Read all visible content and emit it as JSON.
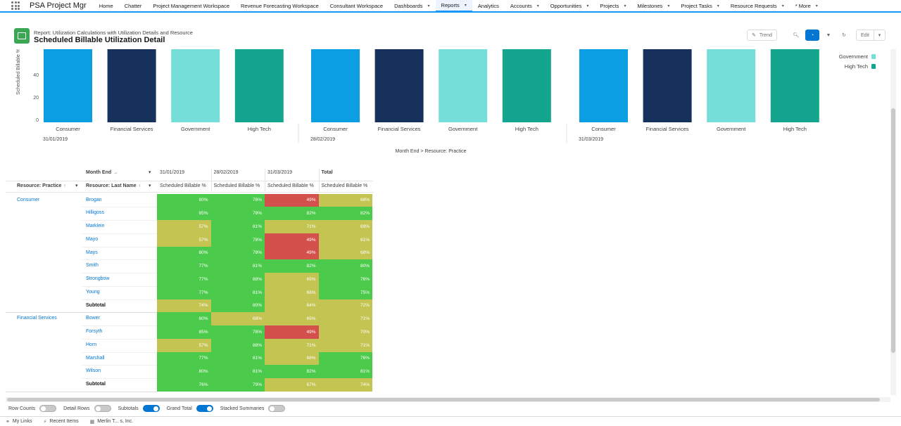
{
  "app": {
    "name": "PSA Project Mgr"
  },
  "nav": [
    {
      "label": "Home",
      "dropdown": false
    },
    {
      "label": "Chatter",
      "dropdown": false
    },
    {
      "label": "Project Management Workspace",
      "dropdown": false
    },
    {
      "label": "Revenue Forecasting Workspace",
      "dropdown": false
    },
    {
      "label": "Consultant Workspace",
      "dropdown": false
    },
    {
      "label": "Dashboards",
      "dropdown": true
    },
    {
      "label": "Reports",
      "dropdown": true,
      "active": true
    },
    {
      "label": "Analytics",
      "dropdown": false
    },
    {
      "label": "Accounts",
      "dropdown": true
    },
    {
      "label": "Opportunities",
      "dropdown": true
    },
    {
      "label": "Projects",
      "dropdown": true
    },
    {
      "label": "Milestones",
      "dropdown": true
    },
    {
      "label": "Project Tasks",
      "dropdown": true
    },
    {
      "label": "Resource Requests",
      "dropdown": true
    },
    {
      "label": "* More",
      "dropdown": true
    }
  ],
  "report": {
    "breadcrumb": "Report: Utilization Calculations with Utilization Details and Resource",
    "title": "Scheduled Billable Utilization Detail",
    "buttons": {
      "trend": "Trend",
      "edit": "Edit"
    }
  },
  "chart_data": {
    "type": "bar",
    "ylabel": "Scheduled Billable %",
    "xlabel": "Month End > Resource: Practice",
    "yticks": [
      0,
      20,
      40
    ],
    "groups": [
      "31/01/2019",
      "28/02/2019",
      "31/03/2019"
    ],
    "categories": [
      "Consumer",
      "Financial Services",
      "Government",
      "High Tech"
    ],
    "colors": {
      "Consumer": "#0b9ee3",
      "Financial Services": "#16325c",
      "Government": "#76ded9",
      "High Tech": "#13a58e"
    },
    "legend": {
      "position": "top-right",
      "visible_entries": [
        "Government",
        "High Tech"
      ]
    }
  },
  "table": {
    "row_header_1": "Resource: Practice",
    "row_header_2": "Resource: Last Name",
    "col_group_header": "Month End",
    "months": [
      "31/01/2019",
      "28/02/2019",
      "31/03/2019"
    ],
    "total_label": "Total",
    "measure_label": "Scheduled Billable %",
    "groups": [
      {
        "practice": "Consumer",
        "rows": [
          {
            "name": "Brogan",
            "values": [
              "80%",
              "78%",
              "49%",
              "68%"
            ]
          },
          {
            "name": "Hilligoss",
            "values": [
              "85%",
              "78%",
              "82%",
              "82%"
            ]
          },
          {
            "name": "Marklein",
            "values": [
              "57%",
              "81%",
              "71%",
              "69%"
            ]
          },
          {
            "name": "Mayo",
            "values": [
              "57%",
              "78%",
              "49%",
              "61%"
            ]
          },
          {
            "name": "Mays",
            "values": [
              "80%",
              "78%",
              "49%",
              "68%"
            ]
          },
          {
            "name": "Smith",
            "values": [
              "77%",
              "81%",
              "82%",
              "80%"
            ]
          },
          {
            "name": "Strongbow",
            "values": [
              "77%",
              "88%",
              "65%",
              "76%"
            ]
          },
          {
            "name": "Young",
            "values": [
              "77%",
              "81%",
              "68%",
              "75%"
            ]
          }
        ],
        "subtotal": {
          "label": "Subtotal",
          "values": [
            "74%",
            "80%",
            "64%",
            "72%"
          ]
        }
      },
      {
        "practice": "Financial Services",
        "rows": [
          {
            "name": "Bower",
            "values": [
              "80%",
              "68%",
              "65%",
              "71%"
            ]
          },
          {
            "name": "Forsyth",
            "values": [
              "85%",
              "78%",
              "49%",
              "70%"
            ]
          },
          {
            "name": "Horn",
            "values": [
              "57%",
              "88%",
              "71%",
              "71%"
            ]
          },
          {
            "name": "Marshall",
            "values": [
              "77%",
              "81%",
              "68%",
              "76%"
            ]
          },
          {
            "name": "Wilson",
            "values": [
              "80%",
              "81%",
              "82%",
              "81%"
            ]
          }
        ],
        "subtotal": {
          "label": "Subtotal",
          "values": [
            "76%",
            "79%",
            "67%",
            "74%"
          ]
        }
      }
    ],
    "colors": {
      "high": "#4bca4b",
      "mid": "#c4c452",
      "low": "#d4504c"
    }
  },
  "footer": {
    "toggles": [
      {
        "label": "Row Counts",
        "on": false
      },
      {
        "label": "Detail Rows",
        "on": false
      },
      {
        "label": "Subtotals",
        "on": true
      },
      {
        "label": "Grand Total",
        "on": true
      },
      {
        "label": "Stacked Summaries",
        "on": false
      }
    ]
  },
  "utility": {
    "items": [
      {
        "label": "My Links",
        "icon": "link-icon"
      },
      {
        "label": "Recent Items",
        "icon": "bolt-icon"
      },
      {
        "label": "Merlin T... s, Inc.",
        "icon": "building-icon"
      }
    ]
  }
}
